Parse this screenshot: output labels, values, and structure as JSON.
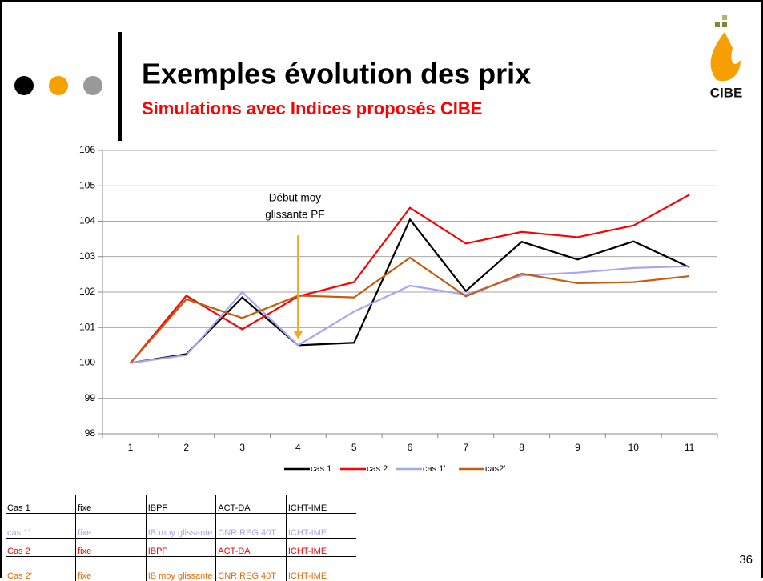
{
  "slide": {
    "title": "Exemples évolution des prix",
    "subtitle": "Simulations avec Indices proposés CIBE",
    "logo": "CIBE",
    "page_number": "36"
  },
  "chart_data": {
    "type": "line",
    "categories": [
      "1",
      "2",
      "3",
      "4",
      "5",
      "6",
      "7",
      "8",
      "9",
      "10",
      "11"
    ],
    "series": [
      {
        "name": "cas 1",
        "color": "#000000",
        "values": [
          100,
          100.25,
          101.85,
          100.5,
          100.57,
          104.05,
          102.03,
          103.42,
          102.92,
          103.43,
          102.7
        ]
      },
      {
        "name": "cas 2",
        "color": "#ff0000",
        "values": [
          100,
          101.9,
          100.95,
          101.88,
          102.28,
          104.38,
          103.37,
          103.7,
          103.55,
          103.88,
          104.75
        ]
      },
      {
        "name": "cas 1'",
        "color": "#a6a6f0",
        "values": [
          100,
          100.22,
          102.0,
          100.5,
          101.45,
          102.18,
          101.93,
          102.47,
          102.55,
          102.68,
          102.73
        ]
      },
      {
        "name": "cas2'",
        "color": "#c55a11",
        "values": [
          100,
          101.8,
          101.27,
          101.9,
          101.85,
          102.97,
          101.88,
          102.52,
          102.25,
          102.28,
          102.45
        ]
      }
    ],
    "ylim": [
      98,
      106
    ],
    "yticks": [
      98,
      99,
      100,
      101,
      102,
      103,
      104,
      105,
      106
    ],
    "grid": true,
    "legend": "bottom",
    "annotation": {
      "text": [
        "Début moy",
        "glissante PF"
      ],
      "category": 3,
      "y_start": 103.6,
      "y_end": 100.7,
      "color": "#f5a623"
    }
  },
  "table": {
    "rows": [
      [
        "Cas 1",
        "fixe",
        "IBPF",
        "ACT-DA",
        "ICHT-IME"
      ],
      [
        "cas 1'",
        "fixe",
        "IB moy glissante",
        "CNR REG 40T",
        "ICHT-IME"
      ],
      [
        "Cas 2",
        "fixe",
        "IBPF",
        "ACT-DA",
        "ICHT-IME"
      ],
      [
        "Cas 2'",
        "fixe",
        "IB moy glissante",
        "CNR REG 40T",
        "ICHT-IME"
      ]
    ],
    "row_colors": [
      "#000000",
      "#a6a6f0",
      "#ff0000",
      "#e46c0a"
    ]
  }
}
